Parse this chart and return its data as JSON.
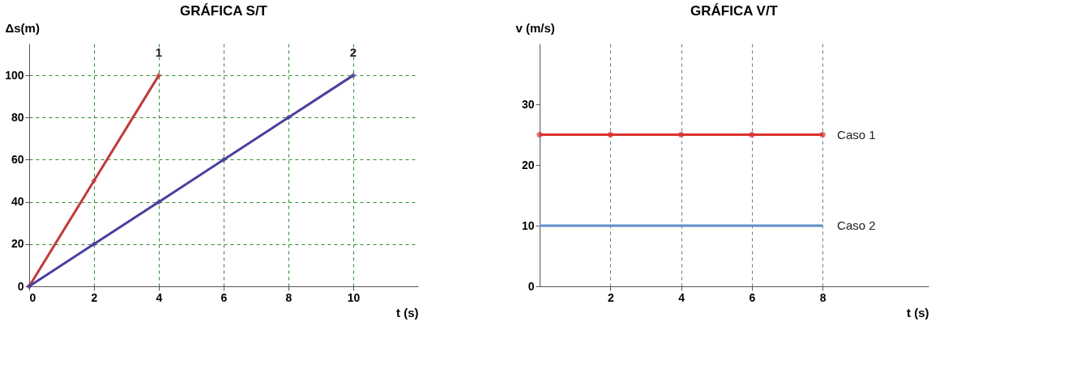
{
  "chart_data": [
    {
      "type": "line",
      "title": "GRÁFICA S/T",
      "xlabel": "t (s)",
      "ylabel": "Δs(m)",
      "xlim": [
        0,
        12
      ],
      "ylim": [
        0,
        115
      ],
      "xticks": [
        0,
        2,
        4,
        6,
        8,
        10
      ],
      "yticks": [
        0,
        20,
        40,
        60,
        80,
        100
      ],
      "grid": true,
      "marker": "diamond",
      "series": [
        {
          "name": "1",
          "color": "#c0393b",
          "x": [
            0,
            2,
            4
          ],
          "values": [
            0,
            50,
            100
          ]
        },
        {
          "name": "2",
          "color": "#4a3f9f",
          "x": [
            0,
            2,
            4,
            6,
            8,
            10
          ],
          "values": [
            0,
            20,
            40,
            60,
            80,
            100
          ]
        }
      ]
    },
    {
      "type": "line",
      "title": "GRÁFICA V/T",
      "xlabel": "t (s)",
      "ylabel": "v (m/s)",
      "xlim": [
        0,
        11
      ],
      "ylim": [
        0,
        40
      ],
      "xticks": [
        2,
        4,
        6,
        8
      ],
      "yticks": [
        0,
        10,
        20,
        30
      ],
      "grid": "x",
      "series": [
        {
          "name": "Caso 1",
          "color": "#d9302c",
          "marker": "circle",
          "x": [
            0,
            2,
            4,
            6,
            8
          ],
          "values": [
            25,
            25,
            25,
            25,
            25
          ]
        },
        {
          "name": "Caso 2",
          "color": "#5b8fc9",
          "marker": "none",
          "x": [
            0,
            8
          ],
          "values": [
            10,
            10
          ]
        }
      ]
    }
  ]
}
